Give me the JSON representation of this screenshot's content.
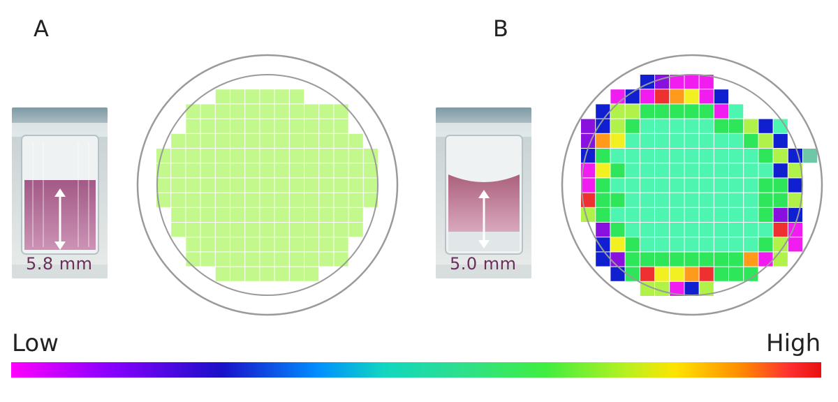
{
  "panels": [
    {
      "label": "A",
      "measurement": "5.8 mm",
      "photo_liquid_color": "#b06a92",
      "grid": {
        "base_color": "#c3f88c",
        "rows": [
          "-----------------",
          "-----GGGGGG------",
          "---GGGGGGGGGGG---",
          "---GGGGGGGGGGG---",
          "--GGGGGGGGGGGGG--",
          "-GGGGGGGGGGGGGGG-",
          "-GGGGGGGGGGGGGGG-",
          "-GGGGGGGGGGGGGGG-",
          "-GGGGGGGGGGGGGGG-",
          "--GGGGGGGGGGGGG--",
          "--GGGGGGGGGGGGG--",
          "---GGGGGGGGGGG---",
          "---GGGGGGGGGGG---",
          "-----GGGGGGG-----",
          "-----------------"
        ]
      }
    },
    {
      "label": "B",
      "measurement": "5.0 mm",
      "photo_liquid_color": "#b4647f",
      "grid": {
        "rows": [
          "-----BUMMM-------",
          "---MBMROYMB------",
          "--BLLGGGGGMC-----",
          "-UBLGCCCCCGGLBC--",
          "-UOYCCCCCCCCGLB--",
          "-BGCCCCCCCCCCGLBT",
          "-MYGCCCCCCCCCCBL-",
          "-MGCCCCCCCCCCGGB-",
          "-RGGCCCCCCCCCGGL-",
          "-LGCCCCCCCCCCGUB-",
          "--UGCCCCCCCCCCRM-",
          "--BYGCCCCCCCCGLM-",
          "--BUGGGGGGGGOML--",
          "---BGRYYORGGG----",
          "-----LLMBL-------"
        ]
      }
    }
  ],
  "palette": {
    "G": "#2ee65a",
    "C": "#4ef5b0",
    "L": "#b0f24a",
    "Y": "#f2f020",
    "O": "#ff9a1a",
    "R": "#ee3030",
    "M": "#f01cf0",
    "U": "#8a10e0",
    "B": "#1020d0",
    "T": "#6ec8a8",
    "S": "#80c8f0"
  },
  "legend": {
    "low_label": "Low",
    "high_label": "High"
  }
}
